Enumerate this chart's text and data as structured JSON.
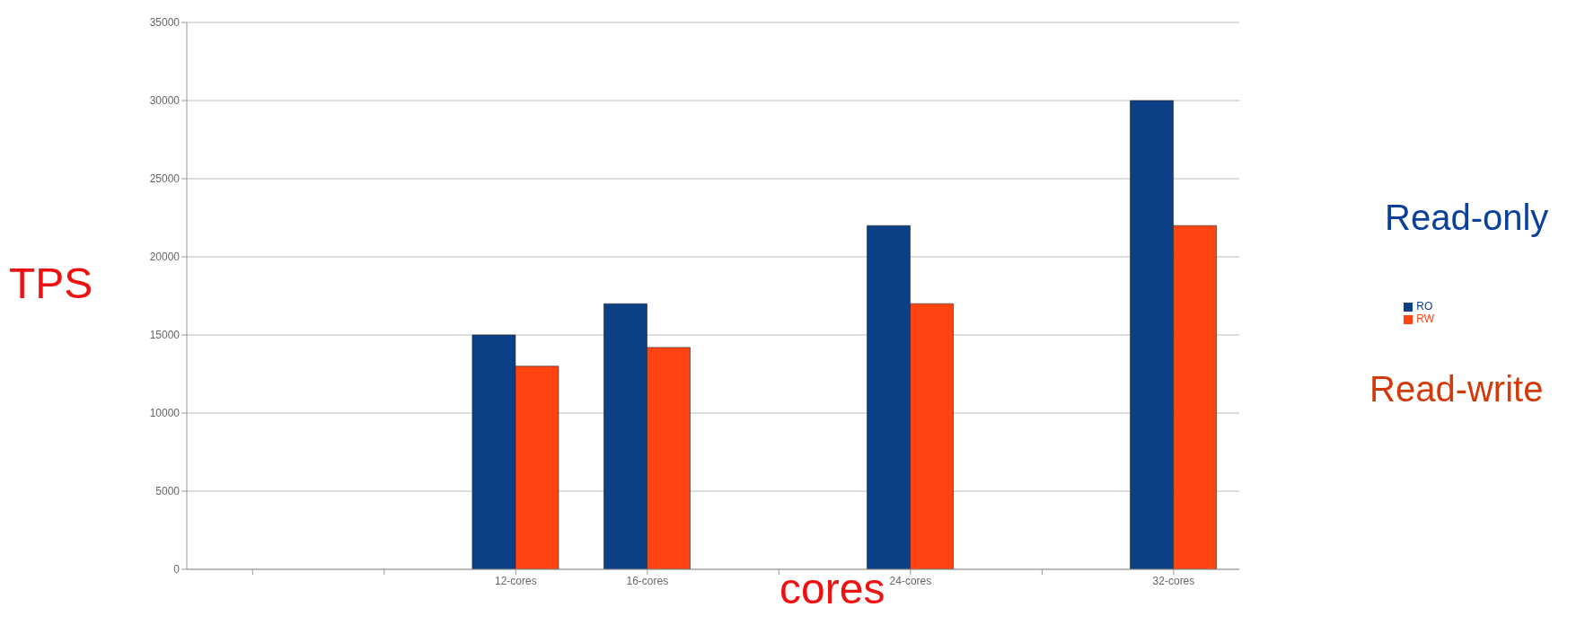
{
  "chart_data": {
    "type": "bar",
    "xlabel": "cores",
    "ylabel": "TPS",
    "categories": [
      null,
      null,
      "12-cores",
      "16-cores",
      null,
      "24-cores",
      null,
      "32-cores"
    ],
    "series": [
      {
        "name": "RO",
        "color": "#0b3f86",
        "values": [
          null,
          null,
          15000,
          17000,
          null,
          22000,
          null,
          30000
        ]
      },
      {
        "name": "RW",
        "color": "#ff4411",
        "values": [
          null,
          null,
          13000,
          14200,
          null,
          17000,
          null,
          22000
        ]
      }
    ],
    "ylim": [
      0,
      35000
    ],
    "yticks": [
      0,
      5000,
      10000,
      15000,
      20000,
      25000,
      30000,
      35000
    ],
    "grid": "y",
    "legend": "right",
    "annotations": [
      "Read-only",
      "Read-write"
    ]
  }
}
